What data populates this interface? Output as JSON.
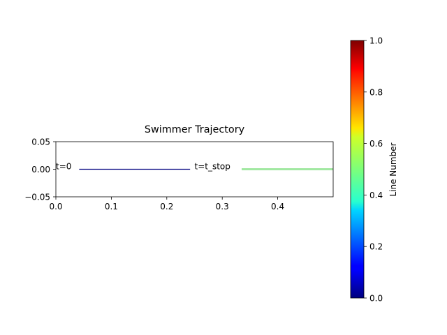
{
  "chart_data": [
    {
      "type": "line",
      "title": "Swimmer Trajectory",
      "xlabel": "",
      "ylabel": "",
      "xlim": [
        0.0,
        0.5
      ],
      "ylim": [
        -0.05,
        0.05
      ],
      "x_ticks": [
        "0.0",
        "0.1",
        "0.2",
        "0.3",
        "0.4"
      ],
      "x_tick_values": [
        0.0,
        0.1,
        0.2,
        0.3,
        0.4
      ],
      "y_ticks": [
        "0.05",
        "0.00",
        "−0.05"
      ],
      "y_tick_values": [
        0.05,
        0.0,
        -0.05
      ],
      "grid": false,
      "series": [
        {
          "color": "#00007f",
          "x": [
            0.042,
            0.242
          ],
          "y": [
            0.0,
            0.0
          ]
        },
        {
          "color": "#a2e8a2",
          "x": [
            0.335,
            0.5
          ],
          "y": [
            0.0,
            0.0
          ]
        }
      ],
      "annotations": [
        {
          "text": "t=0",
          "x": 0.0,
          "y": 0.0
        },
        {
          "text": "t=t_stop",
          "x": 0.25,
          "y": 0.0
        }
      ]
    },
    {
      "type": "colorbar",
      "colormap": "jet",
      "label": "Line Number",
      "range": [
        0.0,
        1.0
      ],
      "ticks": [
        "0.0",
        "0.2",
        "0.4",
        "0.6",
        "0.8",
        "1.0"
      ],
      "tick_values": [
        0.0,
        0.2,
        0.4,
        0.6,
        0.8,
        1.0
      ]
    }
  ]
}
